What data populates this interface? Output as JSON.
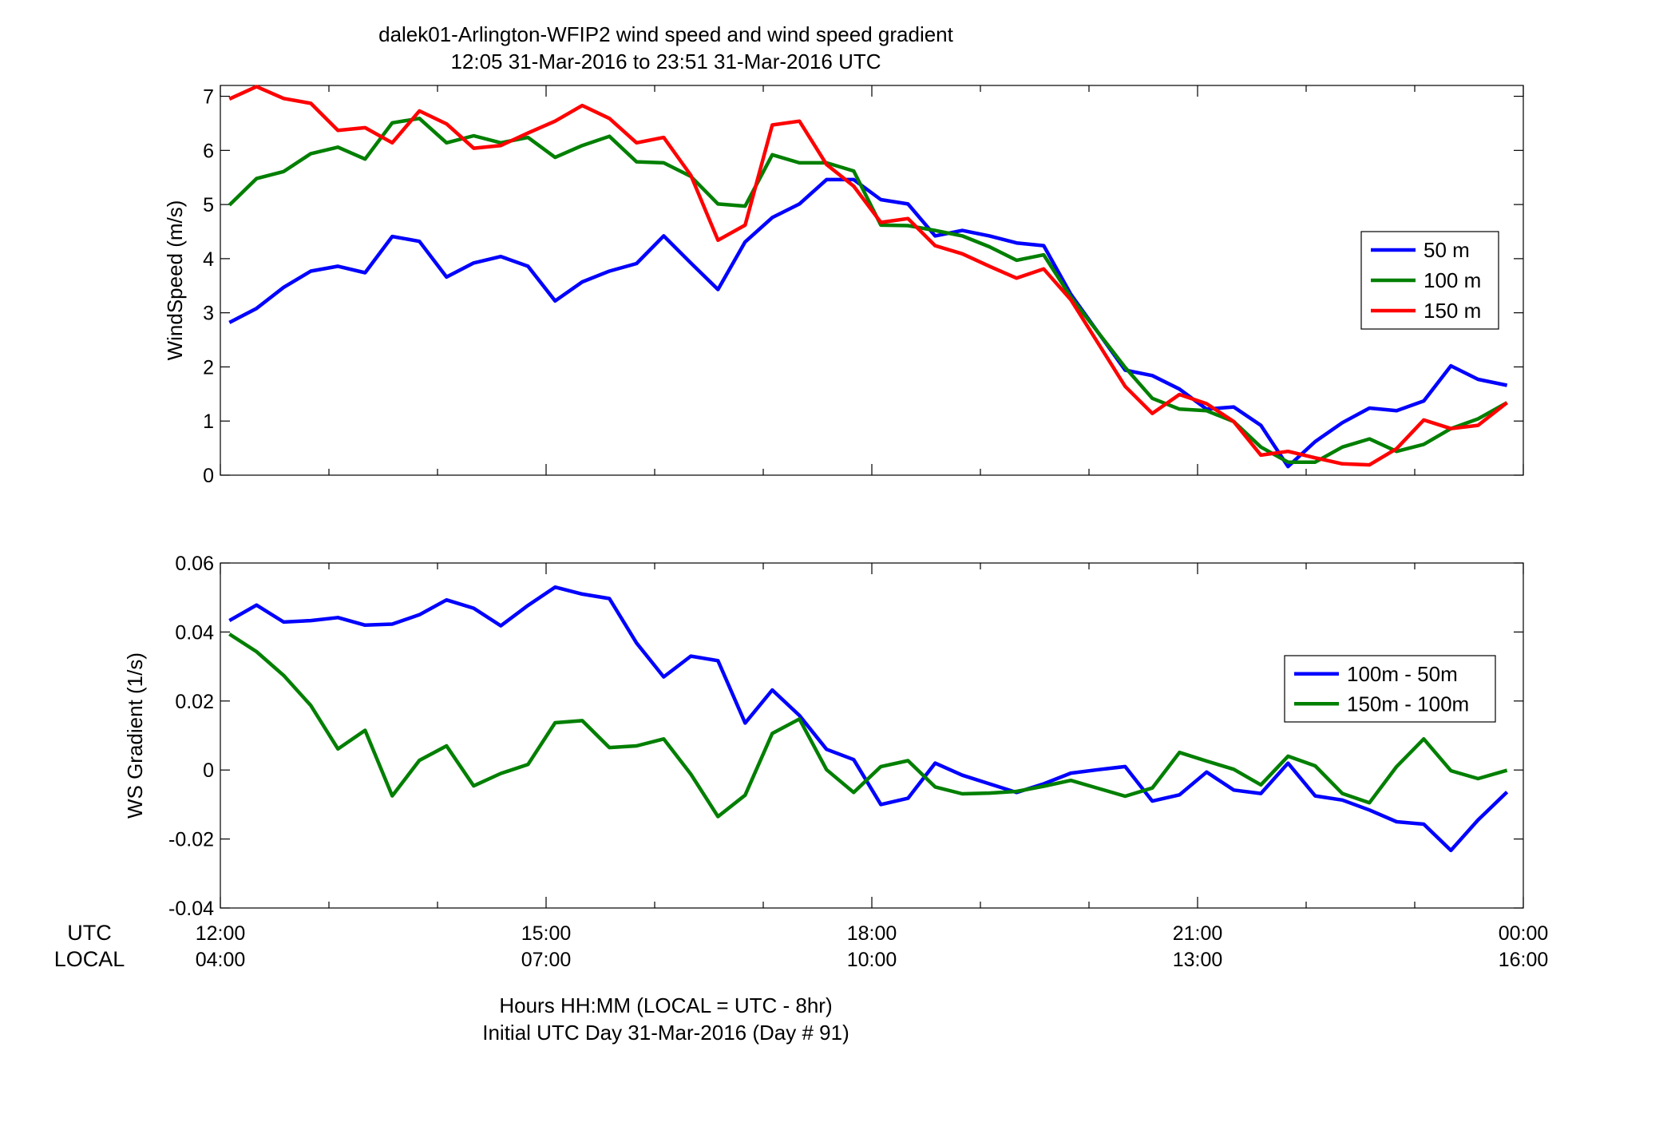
{
  "title": "dalek01-Arlington-WFIP2  wind speed and wind speed gradient",
  "subtitle": "12:05 31-Mar-2016 to 23:51 31-Mar-2016  UTC",
  "x_axis": {
    "row_labels": [
      "UTC",
      "LOCAL"
    ],
    "utc_ticks": [
      "12:00",
      "15:00",
      "18:00",
      "21:00",
      "00:00"
    ],
    "local_ticks": [
      "04:00",
      "07:00",
      "10:00",
      "13:00",
      "16:00"
    ],
    "footer_line1": "Hours HH:MM  (LOCAL = UTC - 8hr)",
    "footer_line2": "Initial UTC Day 31-Mar-2016 (Day # 91)"
  },
  "colors": {
    "blue": "#0000ff",
    "green": "#007f00",
    "red": "#ff0000"
  },
  "chart_data": [
    {
      "type": "line",
      "ylabel": "WindSpeed (m/s)",
      "xlim": [
        "12:00",
        "24:00"
      ],
      "ylim": [
        0,
        7.2
      ],
      "yticks": [
        0,
        1,
        2,
        3,
        4,
        5,
        6,
        7
      ],
      "legend_position": "right",
      "x": [
        "12:05",
        "12:20",
        "12:35",
        "12:50",
        "13:05",
        "13:20",
        "13:35",
        "13:50",
        "14:05",
        "14:20",
        "14:35",
        "14:50",
        "15:05",
        "15:20",
        "15:35",
        "15:50",
        "16:05",
        "16:20",
        "16:35",
        "16:50",
        "17:05",
        "17:20",
        "17:35",
        "17:50",
        "18:05",
        "18:20",
        "18:35",
        "18:50",
        "19:05",
        "19:20",
        "19:35",
        "19:50",
        "20:05",
        "20:20",
        "20:35",
        "20:50",
        "21:05",
        "21:20",
        "21:35",
        "21:50",
        "22:05",
        "22:20",
        "22:35",
        "22:50",
        "23:05",
        "23:20",
        "23:35",
        "23:51"
      ],
      "series": [
        {
          "name": "50 m",
          "color": "#0000ff",
          "values": [
            2.82,
            3.08,
            3.47,
            3.77,
            3.86,
            3.74,
            4.41,
            4.32,
            3.66,
            3.92,
            4.04,
            3.86,
            3.22,
            3.57,
            3.77,
            3.91,
            4.42,
            3.92,
            3.43,
            4.31,
            4.76,
            5.01,
            5.46,
            5.46,
            5.09,
            5.01,
            4.42,
            4.52,
            4.42,
            4.29,
            4.24,
            3.34,
            2.64,
            1.94,
            1.84,
            1.59,
            1.22,
            1.26,
            0.92,
            0.16,
            0.62,
            0.97,
            1.24,
            1.19,
            1.37,
            2.02,
            1.77,
            1.66
          ]
        },
        {
          "name": "100 m",
          "color": "#007f00",
          "values": [
            4.99,
            5.48,
            5.61,
            5.94,
            6.06,
            5.84,
            6.51,
            6.59,
            6.14,
            6.27,
            6.14,
            6.24,
            5.87,
            6.09,
            6.26,
            5.79,
            5.77,
            5.52,
            5.01,
            4.97,
            5.92,
            5.77,
            5.77,
            5.62,
            4.62,
            4.61,
            4.52,
            4.42,
            4.22,
            3.97,
            4.07,
            3.29,
            2.64,
            1.99,
            1.42,
            1.22,
            1.19,
            0.99,
            0.52,
            0.24,
            0.24,
            0.52,
            0.67,
            0.44,
            0.57,
            0.86,
            1.04,
            1.34
          ]
        },
        {
          "name": "150 m",
          "color": "#ff0000",
          "values": [
            6.95,
            7.18,
            6.96,
            6.87,
            6.37,
            6.42,
            6.14,
            6.73,
            6.49,
            6.04,
            6.09,
            6.32,
            6.54,
            6.83,
            6.59,
            6.14,
            6.24,
            5.54,
            4.34,
            4.62,
            6.47,
            6.54,
            5.74,
            5.34,
            4.67,
            4.74,
            4.24,
            4.09,
            3.86,
            3.64,
            3.81,
            3.24,
            2.44,
            1.64,
            1.14,
            1.49,
            1.32,
            0.99,
            0.37,
            0.44,
            0.32,
            0.21,
            0.19,
            0.49,
            1.02,
            0.86,
            0.92,
            1.34
          ]
        }
      ]
    },
    {
      "type": "line",
      "ylabel": "WS Gradient (1/s)",
      "xlim": [
        "12:00",
        "24:00"
      ],
      "ylim": [
        -0.04,
        0.06
      ],
      "yticks": [
        -0.04,
        -0.02,
        0,
        0.02,
        0.04,
        0.06
      ],
      "legend_position": "right",
      "x": [
        "12:05",
        "12:20",
        "12:35",
        "12:50",
        "13:05",
        "13:20",
        "13:35",
        "13:50",
        "14:05",
        "14:20",
        "14:35",
        "14:50",
        "15:05",
        "15:20",
        "15:35",
        "15:50",
        "16:05",
        "16:20",
        "16:35",
        "16:50",
        "17:05",
        "17:20",
        "17:35",
        "17:50",
        "18:05",
        "18:20",
        "18:35",
        "18:50",
        "19:05",
        "19:20",
        "19:35",
        "19:50",
        "20:05",
        "20:20",
        "20:35",
        "20:50",
        "21:05",
        "21:20",
        "21:35",
        "21:50",
        "22:05",
        "22:20",
        "22:35",
        "22:50",
        "23:05",
        "23:20",
        "23:35",
        "23:51"
      ],
      "series": [
        {
          "name": "100m - 50m",
          "color": "#0000ff",
          "values": [
            0.0433,
            0.0478,
            0.0429,
            0.0433,
            0.0442,
            0.042,
            0.0423,
            0.045,
            0.0493,
            0.0469,
            0.0418,
            0.0477,
            0.053,
            0.051,
            0.0497,
            0.0368,
            0.027,
            0.033,
            0.0317,
            0.0136,
            0.0232,
            0.0158,
            0.006,
            0.003,
            -0.01,
            -0.0082,
            0.002,
            -0.0015,
            -0.004,
            -0.0065,
            -0.004,
            -0.0009,
            0.0001,
            0.001,
            -0.009,
            -0.0072,
            -0.0006,
            -0.0058,
            -0.0068,
            0.002,
            -0.0075,
            -0.0087,
            -0.0116,
            -0.015,
            -0.0157,
            -0.0233,
            -0.0145,
            -0.0064
          ]
        },
        {
          "name": "150m - 100m",
          "color": "#007f00",
          "values": [
            0.0394,
            0.0343,
            0.0274,
            0.0187,
            0.0061,
            0.0115,
            -0.0075,
            0.0028,
            0.007,
            -0.0046,
            -0.001,
            0.0016,
            0.0137,
            0.0143,
            0.0065,
            0.007,
            0.009,
            -0.0012,
            -0.0135,
            -0.0073,
            0.0106,
            0.0148,
            0.0001,
            -0.0065,
            0.001,
            0.0027,
            -0.0049,
            -0.0069,
            -0.0067,
            -0.0062,
            -0.0047,
            -0.003,
            -0.0053,
            -0.0076,
            -0.0052,
            0.0051,
            0.0026,
            0.0002,
            -0.0043,
            0.004,
            0.0012,
            -0.0068,
            -0.0095,
            0.001,
            0.009,
            -0.0002,
            -0.0025,
            -0.0001
          ]
        }
      ]
    }
  ]
}
